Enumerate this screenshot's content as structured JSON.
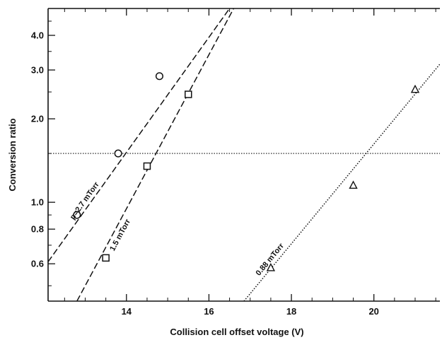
{
  "chart_data": {
    "type": "scatter",
    "xlabel": "Collision cell offset voltage (V)",
    "ylabel": "Conversion ratio",
    "xlim": [
      12.1,
      21.6
    ],
    "ylim": [
      0.44,
      5.0
    ],
    "yscale": "log",
    "x_ticks": [
      14,
      16,
      18,
      20
    ],
    "y_ticks": [
      0.6,
      0.8,
      1.0,
      2.0,
      3.0,
      4.0
    ],
    "y_tick_labels": [
      "0.6",
      "0.8",
      "1.0",
      "2.0",
      "3.0",
      "4.0"
    ],
    "grid": false,
    "reference_line_y": 1.5,
    "series": [
      {
        "name": "p=2.7 mTorr",
        "marker": "circle",
        "points": [
          [
            12.8,
            0.9
          ],
          [
            13.8,
            1.5
          ],
          [
            14.8,
            2.85
          ]
        ],
        "fit_line": [
          [
            12.1,
            0.61
          ],
          [
            16.5,
            5.0
          ]
        ],
        "line_style": "dashed"
      },
      {
        "name": "1.5 mTorr",
        "marker": "square",
        "points": [
          [
            13.5,
            0.63
          ],
          [
            14.5,
            1.35
          ],
          [
            15.5,
            2.45
          ]
        ],
        "fit_line": [
          [
            12.8,
            0.44
          ],
          [
            16.6,
            5.0
          ]
        ],
        "line_style": "dashed"
      },
      {
        "name": "0.88 mTorr",
        "marker": "triangle",
        "points": [
          [
            17.5,
            0.58
          ],
          [
            19.5,
            1.15
          ],
          [
            21.0,
            2.55
          ]
        ],
        "fit_line": [
          [
            16.85,
            0.44
          ],
          [
            21.6,
            3.15
          ]
        ],
        "line_style": "dotted"
      }
    ]
  }
}
